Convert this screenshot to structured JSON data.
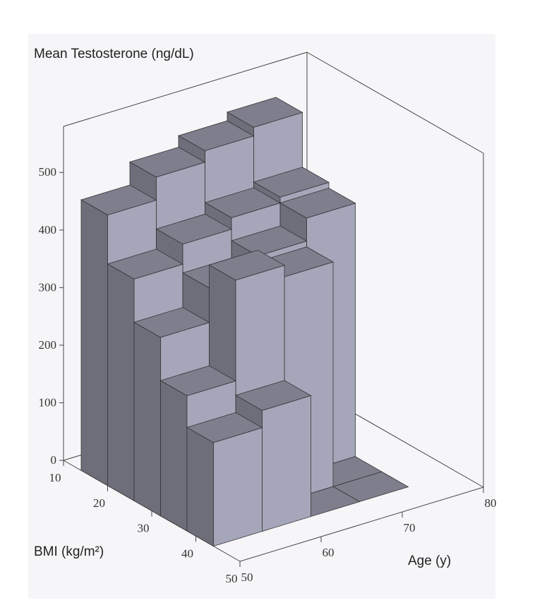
{
  "chart_data": {
    "type": "bar3d",
    "z_label": "Mean Testosterone (ng/dL)",
    "y_label": "BMI (kg/m²)",
    "x_label": "Age (y)",
    "x_bins": [
      50,
      56,
      62,
      68,
      74
    ],
    "y_bins": [
      14,
      20,
      26,
      32,
      38,
      44
    ],
    "values": [
      [
        470,
        510,
        530,
        545
      ],
      [
        385,
        420,
        440,
        450
      ],
      [
        310,
        370,
        400,
        440
      ],
      [
        235,
        410,
        390,
        0
      ],
      [
        180,
        210,
        0,
        0
      ]
    ],
    "color": "#a6a6ba",
    "xlim": [
      50,
      80
    ],
    "xticks": [
      50,
      60,
      70,
      80
    ],
    "ylim": [
      10,
      50
    ],
    "yticks": [
      10,
      20,
      30,
      40,
      50
    ],
    "zlim": [
      0,
      580
    ],
    "zticks": [
      0,
      100,
      200,
      300,
      400,
      500
    ]
  }
}
